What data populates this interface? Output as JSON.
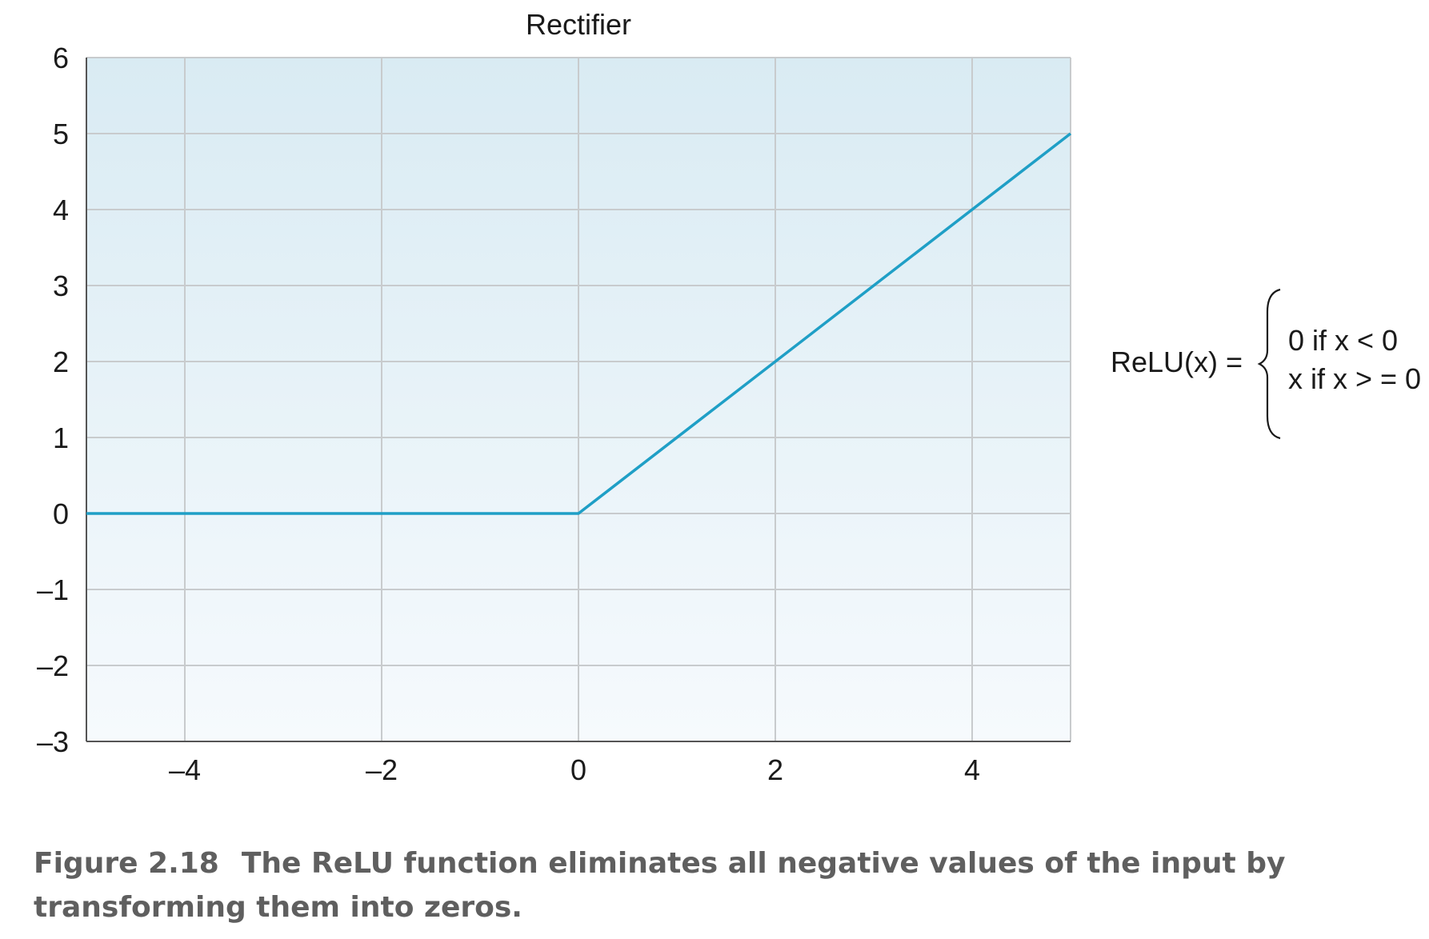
{
  "chart_data": {
    "type": "line",
    "title": "Rectifier",
    "xlabel": "",
    "ylabel": "",
    "xlim": [
      -5,
      5
    ],
    "ylim": [
      -3,
      6
    ],
    "x_ticks": [
      -4,
      -2,
      0,
      2,
      4
    ],
    "x_tick_labels": [
      "–4",
      "–2",
      "0",
      "2",
      "4"
    ],
    "y_ticks": [
      -3,
      -2,
      -1,
      0,
      1,
      2,
      3,
      4,
      5,
      6
    ],
    "y_tick_labels": [
      "–3",
      "–2",
      "–1",
      "0",
      "1",
      "2",
      "3",
      "4",
      "5",
      "6"
    ],
    "grid": true,
    "series": [
      {
        "x": [
          -5,
          0,
          5
        ],
        "y": [
          0,
          0,
          5
        ]
      }
    ],
    "colors": {
      "line": "#1f9fc6",
      "grid": "#c8cbcd",
      "axis": "#555555",
      "background_top": "#d9ebf3",
      "background_bottom": "#f6fafd"
    }
  },
  "formula": {
    "lhs": "ReLU(x) =",
    "case_1": "0 if x < 0",
    "case_2": "x if x > = 0"
  },
  "caption": {
    "label": "Figure 2.18",
    "text": "The ReLU function eliminates all negative values of the input by transforming them into zeros."
  }
}
